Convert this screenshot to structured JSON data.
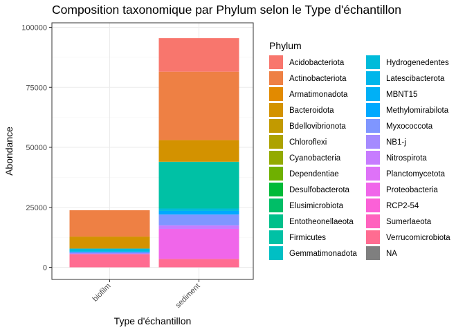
{
  "chart_data": {
    "type": "bar",
    "stacked": true,
    "title": "Composition taxonomique par Phylum selon le Type d'échantillon",
    "xlabel": "Type d'échantillon",
    "ylabel": "Abondance",
    "categories": [
      "biofilm",
      "sediment"
    ],
    "ylim": [
      0,
      100000
    ],
    "yticks": [
      0,
      25000,
      50000,
      75000,
      100000
    ],
    "ytick_labels": [
      "0",
      "25000",
      "50000",
      "75000",
      "100000"
    ],
    "grid": true,
    "legend_position": "right",
    "legend_title": "Phylum",
    "series": [
      {
        "name": "Acidobacteriota",
        "color": "#F8766D",
        "values": [
          0,
          14000
        ]
      },
      {
        "name": "Actinobacteriota",
        "color": "#EE8044",
        "values": [
          11000,
          28500
        ]
      },
      {
        "name": "Armatimonadota",
        "color": "#E28A00",
        "values": [
          0,
          0
        ]
      },
      {
        "name": "Bacteroidota",
        "color": "#D39200",
        "values": [
          5000,
          9000
        ]
      },
      {
        "name": "Bdellovibrionota",
        "color": "#C29A00",
        "values": [
          0,
          0
        ]
      },
      {
        "name": "Chloroflexi",
        "color": "#ADA200",
        "values": [
          0,
          0
        ]
      },
      {
        "name": "Cyanobacteria",
        "color": "#93AA00",
        "values": [
          0,
          0
        ]
      },
      {
        "name": "Dependentiae",
        "color": "#6FB000",
        "values": [
          0,
          0
        ]
      },
      {
        "name": "Desulfobacterota",
        "color": "#00BA38",
        "values": [
          0,
          0
        ]
      },
      {
        "name": "Elusimicrobiota",
        "color": "#00BE67",
        "values": [
          0,
          0
        ]
      },
      {
        "name": "Entotheonellaeota",
        "color": "#00C08B",
        "values": [
          0,
          0
        ]
      },
      {
        "name": "Firmicutes",
        "color": "#00C1A5",
        "values": [
          0,
          19500
        ]
      },
      {
        "name": "Gemmatimonadota",
        "color": "#00BFC4",
        "values": [
          0,
          0
        ]
      },
      {
        "name": "Hydrogenedentes",
        "color": "#00BBDA",
        "values": [
          1200,
          1000
        ]
      },
      {
        "name": "Latescibacterota",
        "color": "#00B6EB",
        "values": [
          0,
          0
        ]
      },
      {
        "name": "MBNT15",
        "color": "#00B0F6",
        "values": [
          0,
          0
        ]
      },
      {
        "name": "Methylomirabilota",
        "color": "#00A9FF",
        "values": [
          400,
          1500
        ]
      },
      {
        "name": "Myxococcota",
        "color": "#7F96FF",
        "values": [
          0,
          4500
        ]
      },
      {
        "name": "NB1-j",
        "color": "#A58AFF",
        "values": [
          700,
          0
        ]
      },
      {
        "name": "Nitrospirota",
        "color": "#C77CFF",
        "values": [
          0,
          1500
        ]
      },
      {
        "name": "Planctomycetota",
        "color": "#DE72F8",
        "values": [
          0,
          0
        ]
      },
      {
        "name": "Proteobacteria",
        "color": "#F066EA",
        "values": [
          0,
          12500
        ]
      },
      {
        "name": "RCP2-54",
        "color": "#FB61D7",
        "values": [
          0,
          0
        ]
      },
      {
        "name": "Sumerlaeota",
        "color": "#FF62BE",
        "values": [
          0,
          0
        ]
      },
      {
        "name": "Verrucomicrobiota",
        "color": "#FF6C91",
        "values": [
          5500,
          3500
        ]
      },
      {
        "name": "NA",
        "color": "#7F7F7F",
        "values": [
          0,
          0
        ]
      }
    ]
  }
}
